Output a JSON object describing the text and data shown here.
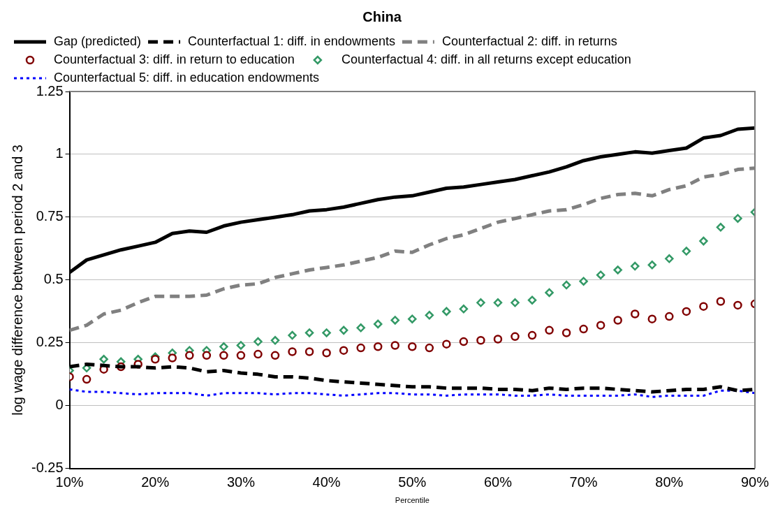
{
  "chart_data": {
    "type": "line",
    "title": "China",
    "xlabel": "Percentile",
    "ylabel": "log wage difference between period 2 and 3",
    "x": [
      10,
      12,
      14,
      16,
      18,
      20,
      22,
      24,
      26,
      28,
      30,
      32,
      34,
      36,
      38,
      40,
      42,
      44,
      46,
      48,
      50,
      52,
      54,
      56,
      58,
      60,
      62,
      64,
      66,
      68,
      70,
      72,
      74,
      76,
      78,
      80,
      82,
      84,
      86,
      88,
      90
    ],
    "xlim": [
      10,
      90
    ],
    "xticks": [
      {
        "value": 10,
        "label": "10%"
      },
      {
        "value": 20,
        "label": "20%"
      },
      {
        "value": 30,
        "label": "30%"
      },
      {
        "value": 40,
        "label": "40%"
      },
      {
        "value": 50,
        "label": "50%"
      },
      {
        "value": 60,
        "label": "60%"
      },
      {
        "value": 70,
        "label": "70%"
      },
      {
        "value": 80,
        "label": "80%"
      },
      {
        "value": 90,
        "label": "90%"
      }
    ],
    "ylim": [
      -0.25,
      1.25
    ],
    "yticks": [
      -0.25,
      0,
      0.25,
      0.5,
      0.75,
      1,
      1.25
    ],
    "grid": "y",
    "legend": "top left",
    "series": [
      {
        "name": "Gap (predicted)",
        "type": "line",
        "line_style": "solid",
        "color": "#000000",
        "values": [
          0.53,
          0.58,
          0.6,
          0.62,
          0.635,
          0.65,
          0.685,
          0.695,
          0.69,
          0.715,
          0.73,
          0.74,
          0.75,
          0.76,
          0.775,
          0.78,
          0.79,
          0.805,
          0.82,
          0.83,
          0.835,
          0.85,
          0.865,
          0.87,
          0.88,
          0.89,
          0.9,
          0.915,
          0.93,
          0.95,
          0.975,
          0.99,
          1.0,
          1.01,
          1.005,
          1.015,
          1.025,
          1.065,
          1.075,
          1.1,
          1.105
        ]
      },
      {
        "name": "Counterfactual 1: diff. in endowments",
        "type": "line",
        "line_style": "dashed",
        "color": "#000000",
        "values": [
          0.155,
          0.165,
          0.16,
          0.155,
          0.155,
          0.15,
          0.155,
          0.15,
          0.135,
          0.14,
          0.13,
          0.125,
          0.115,
          0.115,
          0.11,
          0.1,
          0.095,
          0.09,
          0.085,
          0.08,
          0.075,
          0.075,
          0.07,
          0.07,
          0.07,
          0.065,
          0.065,
          0.06,
          0.07,
          0.065,
          0.07,
          0.07,
          0.065,
          0.06,
          0.055,
          0.06,
          0.065,
          0.065,
          0.075,
          0.06,
          0.065
        ]
      },
      {
        "name": "Counterfactual 2: diff. in returns",
        "type": "line",
        "line_style": "dashed",
        "color": "#808080",
        "values": [
          0.3,
          0.32,
          0.365,
          0.38,
          0.41,
          0.435,
          0.435,
          0.435,
          0.44,
          0.465,
          0.48,
          0.485,
          0.51,
          0.525,
          0.54,
          0.55,
          0.56,
          0.575,
          0.59,
          0.615,
          0.61,
          0.64,
          0.665,
          0.68,
          0.705,
          0.73,
          0.745,
          0.76,
          0.775,
          0.78,
          0.8,
          0.825,
          0.84,
          0.845,
          0.835,
          0.86,
          0.875,
          0.91,
          0.92,
          0.94,
          0.945
        ]
      },
      {
        "name": "Counterfactual 3: diff. in return to education",
        "type": "scatter",
        "marker": "circle",
        "color": "#800000",
        "values": [
          0.115,
          0.105,
          0.145,
          0.155,
          0.165,
          0.185,
          0.19,
          0.2,
          0.2,
          0.2,
          0.2,
          0.205,
          0.2,
          0.215,
          0.215,
          0.21,
          0.22,
          0.23,
          0.235,
          0.24,
          0.235,
          0.23,
          0.245,
          0.255,
          0.26,
          0.265,
          0.275,
          0.28,
          0.3,
          0.29,
          0.305,
          0.32,
          0.34,
          0.365,
          0.345,
          0.355,
          0.375,
          0.395,
          0.415,
          0.4,
          0.405
        ]
      },
      {
        "name": "Counterfactual 4: diff. in all returns except education",
        "type": "scatter",
        "marker": "diamond",
        "color": "#339966",
        "values": [
          0.14,
          0.15,
          0.185,
          0.175,
          0.185,
          0.195,
          0.21,
          0.22,
          0.22,
          0.235,
          0.24,
          0.255,
          0.26,
          0.28,
          0.29,
          0.29,
          0.3,
          0.31,
          0.325,
          0.34,
          0.345,
          0.36,
          0.375,
          0.385,
          0.41,
          0.41,
          0.41,
          0.42,
          0.45,
          0.48,
          0.495,
          0.52,
          0.54,
          0.555,
          0.56,
          0.585,
          0.615,
          0.655,
          0.71,
          0.745,
          0.77
        ]
      },
      {
        "name": "Counterfactual 5: diff. in education endowments",
        "type": "line",
        "line_style": "dotted",
        "color": "#0000ff",
        "values": [
          0.065,
          0.055,
          0.055,
          0.05,
          0.045,
          0.05,
          0.05,
          0.05,
          0.04,
          0.05,
          0.05,
          0.05,
          0.045,
          0.05,
          0.05,
          0.045,
          0.04,
          0.045,
          0.05,
          0.05,
          0.045,
          0.045,
          0.04,
          0.045,
          0.045,
          0.045,
          0.04,
          0.04,
          0.045,
          0.04,
          0.04,
          0.04,
          0.04,
          0.045,
          0.035,
          0.04,
          0.04,
          0.04,
          0.06,
          0.06,
          0.05
        ]
      }
    ]
  }
}
